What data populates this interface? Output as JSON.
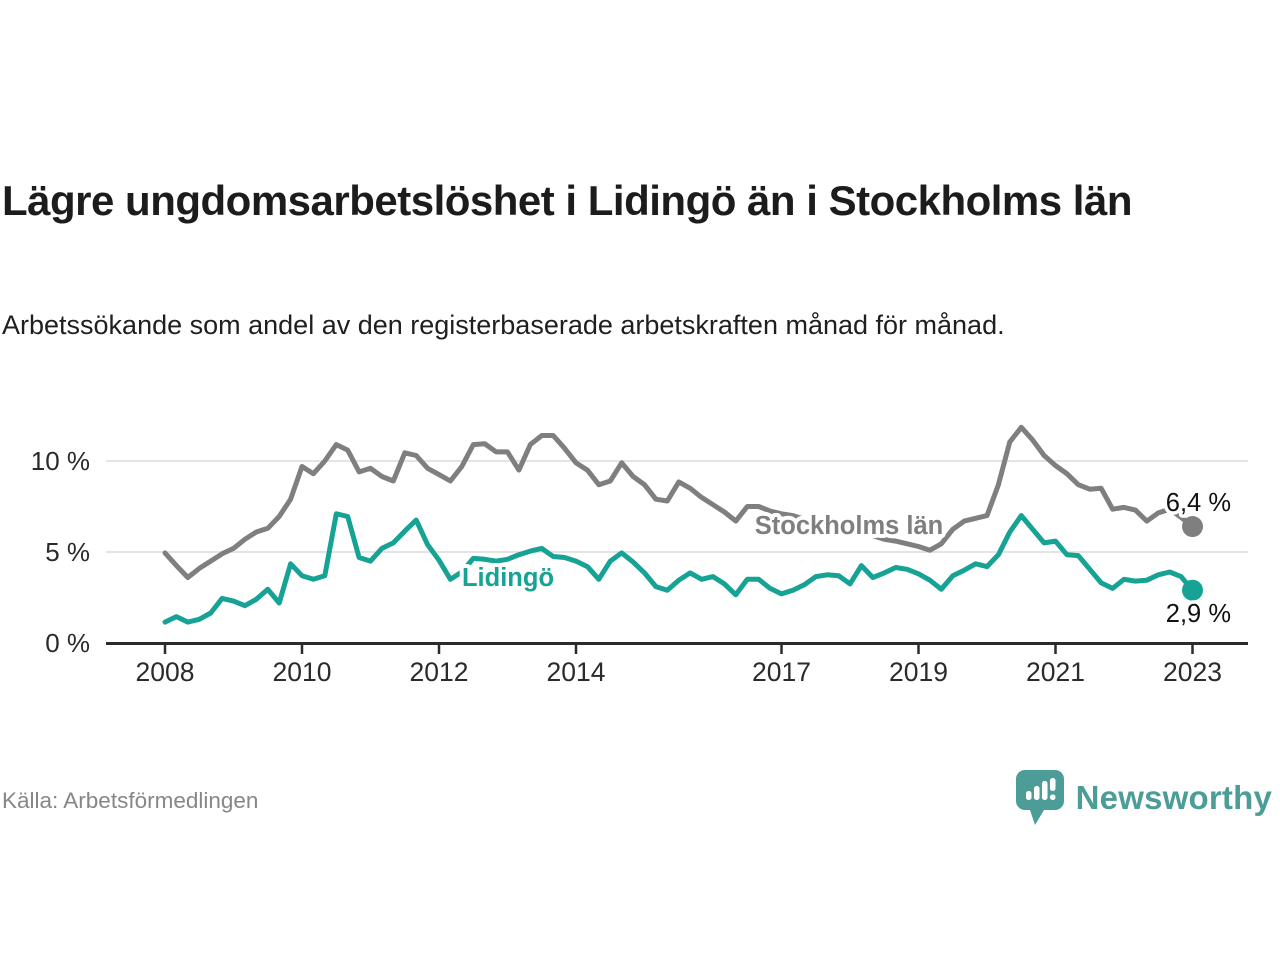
{
  "header": {
    "title": "Lägre ungdomsarbetslöshet i Lidingö än i Stockholms län",
    "subtitle": "Arbetssökande som andel av den registerbaserade arbetskraften månad för månad."
  },
  "footer": {
    "source": "Källa: Arbetsförmedlingen",
    "brand": "Newsworthy"
  },
  "colors": {
    "stockholm_line": "#7f7f7f",
    "lidingo_line": "#16a294",
    "value_label": "#111111",
    "grid": "#dcdcdc",
    "axis": "#2b2b2b",
    "brand_teal": "#4c9c98"
  },
  "chart_data": {
    "type": "line",
    "unit": "%",
    "start": "2008-01",
    "step_months": 2,
    "ylim": [
      0,
      12.5
    ],
    "grid": true,
    "y_axis": {
      "ticks": [
        {
          "value": 0,
          "label": "0 %"
        },
        {
          "value": 5,
          "label": "5 %"
        },
        {
          "value": 10,
          "label": "10 %"
        }
      ]
    },
    "x_axis": {
      "ticks": [
        {
          "year": 2008,
          "label": "2008"
        },
        {
          "year": 2010,
          "label": "2010"
        },
        {
          "year": 2012,
          "label": "2012"
        },
        {
          "year": 2014,
          "label": "2014"
        },
        {
          "year": 2017,
          "label": "2017"
        },
        {
          "year": 2019,
          "label": "2019"
        },
        {
          "year": 2021,
          "label": "2021"
        },
        {
          "year": 2023,
          "label": "2023"
        }
      ]
    },
    "series": [
      {
        "name": "Stockholms län",
        "end_label": "6,4 %",
        "last_value": 6.4,
        "values": [
          4.95,
          4.25,
          3.6,
          4.1,
          4.5,
          4.9,
          5.2,
          5.7,
          6.1,
          6.3,
          6.95,
          7.9,
          9.7,
          9.3,
          10.0,
          10.9,
          10.6,
          9.4,
          9.6,
          9.15,
          8.9,
          10.45,
          10.3,
          9.6,
          9.25,
          8.9,
          9.7,
          10.9,
          10.95,
          10.5,
          10.5,
          9.5,
          10.9,
          11.4,
          11.4,
          10.7,
          9.9,
          9.5,
          8.7,
          8.9,
          9.9,
          9.15,
          8.7,
          7.9,
          7.8,
          8.85,
          8.5,
          8.0,
          7.6,
          7.2,
          6.7,
          7.5,
          7.5,
          7.25,
          7.1,
          7.0,
          6.8,
          6.6,
          6.5,
          6.35,
          6.2,
          6.05,
          5.9,
          5.7,
          5.6,
          5.45,
          5.3,
          5.1,
          5.45,
          6.25,
          6.7,
          6.85,
          7.0,
          8.7,
          11.05,
          11.85,
          11.15,
          10.3,
          9.75,
          9.3,
          8.7,
          8.45,
          8.5,
          7.35,
          7.45,
          7.3,
          6.7,
          7.15,
          7.35,
          6.9,
          6.4
        ]
      },
      {
        "name": "Lidingö",
        "end_label": "2,9 %",
        "last_value": 2.9,
        "values": [
          1.15,
          1.45,
          1.15,
          1.3,
          1.65,
          2.45,
          2.3,
          2.05,
          2.4,
          2.95,
          2.2,
          4.35,
          3.7,
          3.5,
          3.7,
          7.1,
          6.95,
          4.7,
          4.5,
          5.2,
          5.5,
          6.15,
          6.75,
          5.4,
          4.55,
          3.5,
          3.9,
          4.65,
          4.6,
          4.5,
          4.6,
          4.85,
          5.05,
          5.2,
          4.75,
          4.7,
          4.5,
          4.2,
          3.5,
          4.5,
          4.95,
          4.45,
          3.85,
          3.1,
          2.9,
          3.45,
          3.85,
          3.5,
          3.65,
          3.25,
          2.65,
          3.5,
          3.5,
          3.0,
          2.7,
          2.9,
          3.2,
          3.65,
          3.75,
          3.7,
          3.25,
          4.25,
          3.6,
          3.85,
          4.15,
          4.05,
          3.8,
          3.45,
          2.95,
          3.7,
          4.0,
          4.35,
          4.2,
          4.85,
          6.1,
          7.0,
          6.25,
          5.5,
          5.6,
          4.85,
          4.8,
          4.05,
          3.3,
          3.0,
          3.5,
          3.4,
          3.45,
          3.75,
          3.9,
          3.65,
          2.9
        ]
      }
    ]
  }
}
